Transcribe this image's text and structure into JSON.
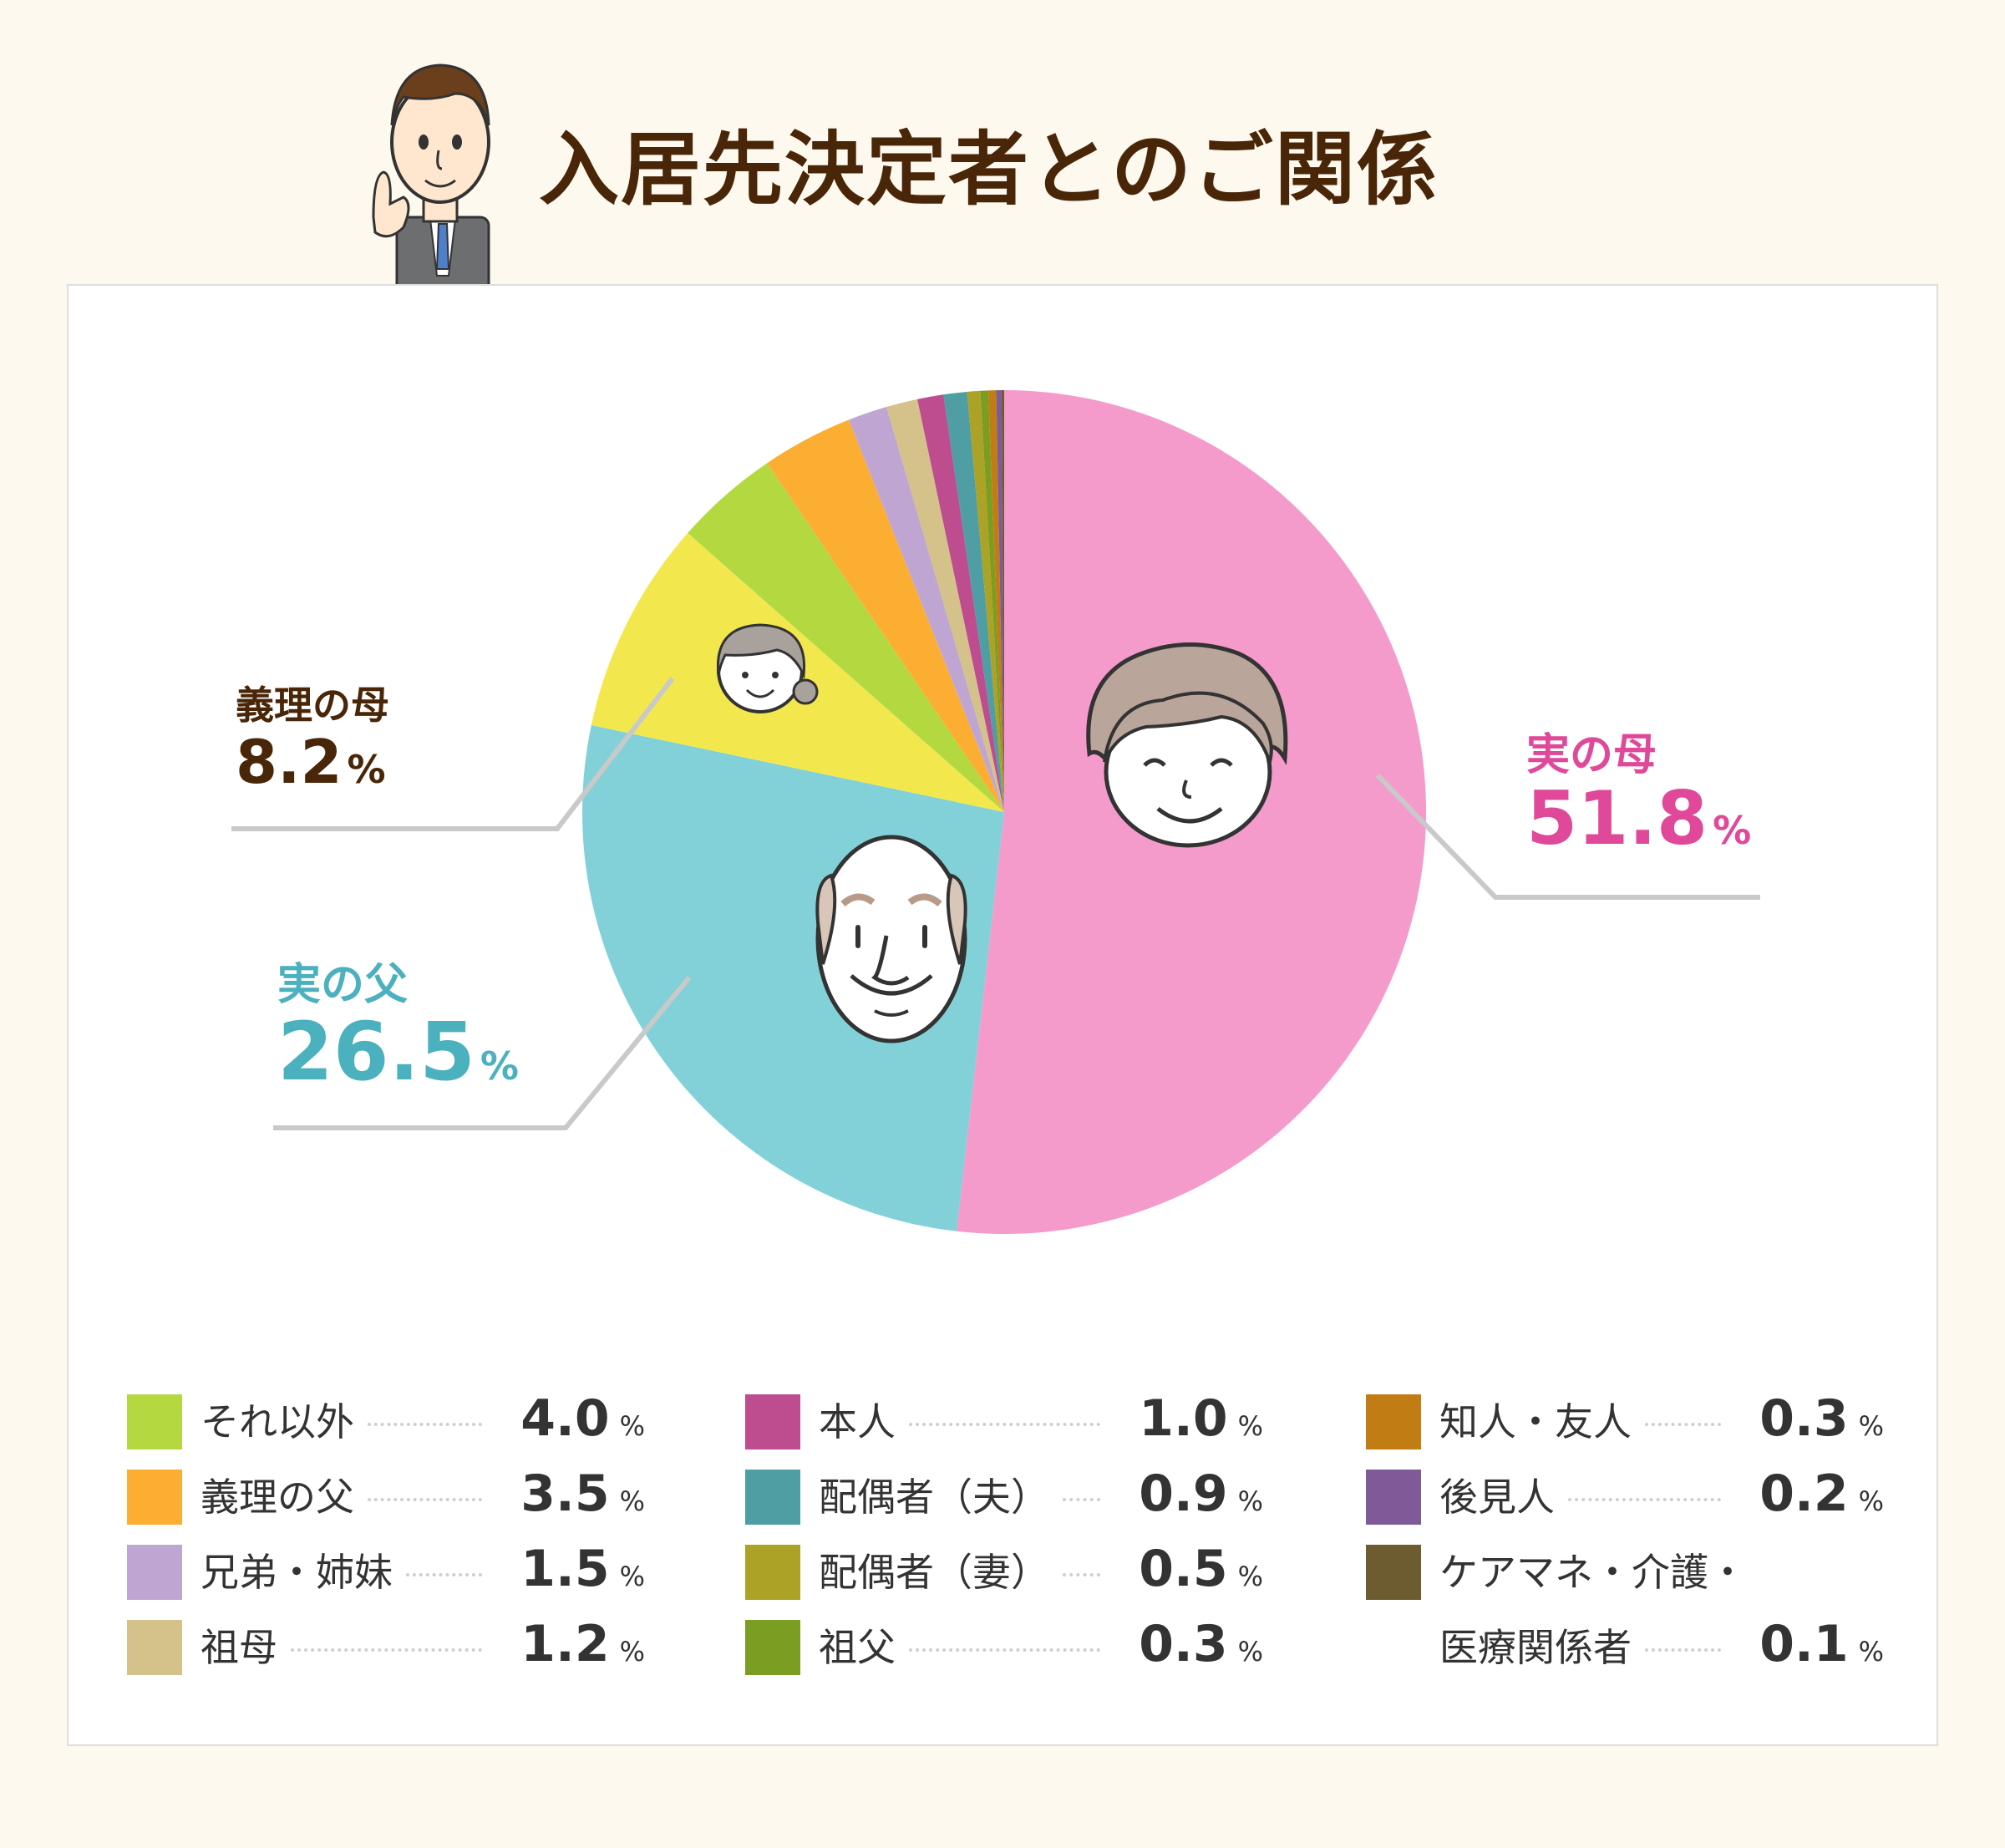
{
  "title": "入居先決定者とのご関係",
  "icons": {
    "mascot": "businessman-pointing-icon",
    "mother": "elderly-woman-face-icon",
    "father": "elderly-man-face-icon",
    "inlaw_mother": "grandmother-face-icon"
  },
  "callouts": {
    "mother": {
      "label": "実の母",
      "value": "51.8",
      "unit": "%"
    },
    "father": {
      "label": "実の父",
      "value": "26.5",
      "unit": "%"
    },
    "inlaw_mother": {
      "label": "義理の母",
      "value": "8.2",
      "unit": "%"
    }
  },
  "legend": [
    [
      {
        "label": "それ以外",
        "value": "4.0",
        "unit": "%"
      },
      {
        "label": "義理の父",
        "value": "3.5",
        "unit": "%"
      },
      {
        "label": "兄弟・姉妹",
        "value": "1.5",
        "unit": "%"
      },
      {
        "label": "祖母",
        "value": "1.2",
        "unit": "%"
      }
    ],
    [
      {
        "label": "本人",
        "value": "1.0",
        "unit": "%"
      },
      {
        "label": "配偶者（夫）",
        "value": "0.9",
        "unit": "%"
      },
      {
        "label": "配偶者（妻）",
        "value": "0.5",
        "unit": "%"
      },
      {
        "label": "祖父",
        "value": "0.3",
        "unit": "%"
      }
    ],
    [
      {
        "label": "知人・友人",
        "value": "0.3",
        "unit": "%"
      },
      {
        "label": "後見人",
        "value": "0.2",
        "unit": "%"
      },
      {
        "label": "ケアマネ・介護・\n医療関係者",
        "value": "0.1",
        "unit": "%"
      }
    ]
  ],
  "chart_data": {
    "type": "pie",
    "title": "入居先決定者とのご関係",
    "start": "12 o'clock, clockwise",
    "slices": [
      {
        "label": "実の母",
        "value": 51.8,
        "color": "#f49bcc"
      },
      {
        "label": "実の父",
        "value": 26.5,
        "color": "#82d1d8"
      },
      {
        "label": "義理の母",
        "value": 8.2,
        "color": "#f2e84e"
      },
      {
        "label": "それ以外",
        "value": 4.0,
        "color": "#b4d940"
      },
      {
        "label": "義理の父",
        "value": 3.5,
        "color": "#fcae33"
      },
      {
        "label": "兄弟・姉妹",
        "value": 1.5,
        "color": "#bfa6d2"
      },
      {
        "label": "祖母",
        "value": 1.2,
        "color": "#d5c18a"
      },
      {
        "label": "本人",
        "value": 1.0,
        "color": "#bd4d8f"
      },
      {
        "label": "配偶者（夫）",
        "value": 0.9,
        "color": "#4f9ea4"
      },
      {
        "label": "配偶者（妻）",
        "value": 0.5,
        "color": "#aca225"
      },
      {
        "label": "祖父",
        "value": 0.3,
        "color": "#7b9d22"
      },
      {
        "label": "知人・友人",
        "value": 0.3,
        "color": "#c17d14"
      },
      {
        "label": "後見人",
        "value": 0.2,
        "color": "#7e5a98"
      },
      {
        "label": "ケアマネ・介護・医療関係者",
        "value": 0.1,
        "color": "#6e5c31"
      }
    ]
  }
}
